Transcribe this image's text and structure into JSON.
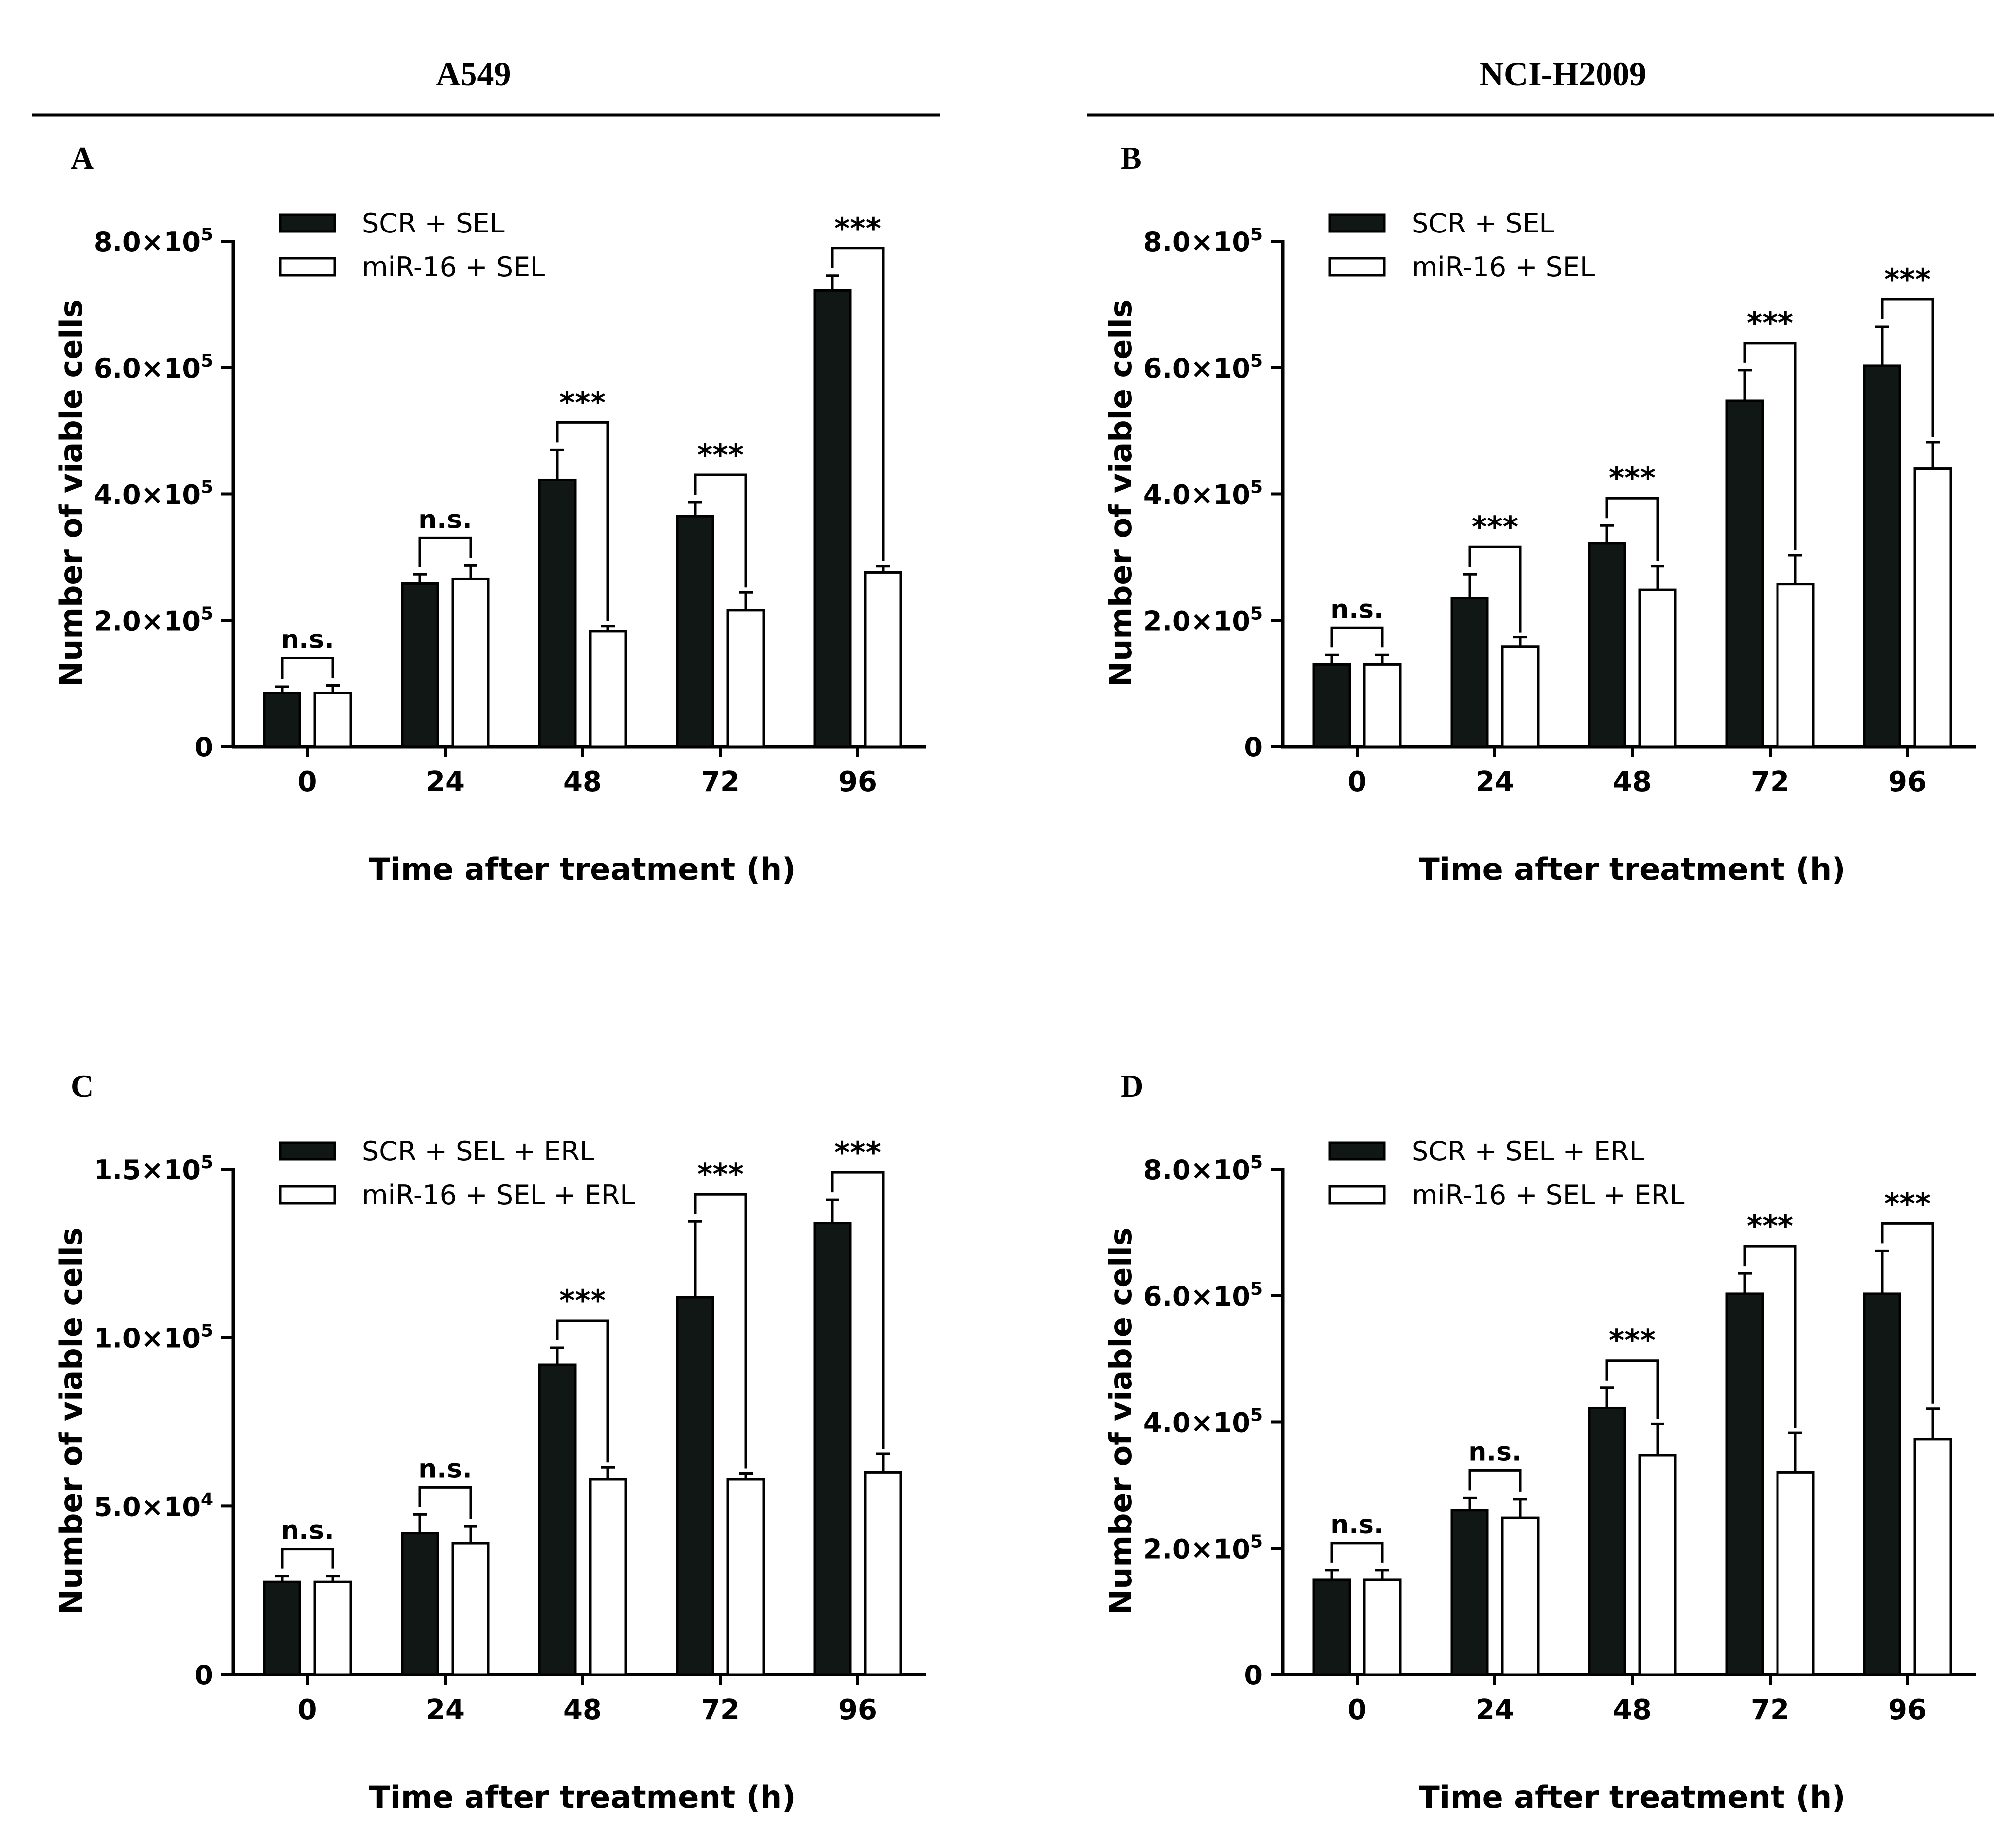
{
  "headers": {
    "left": "A549",
    "right": "NCI-H2009"
  },
  "colors": {
    "dark_bar": "#111714",
    "light_bar": "#ffffff",
    "ink": "#000000"
  },
  "chart_data": [
    {
      "panel": "A",
      "type": "bar",
      "title": "",
      "xlabel": "Time after treatment (h)",
      "ylabel": "Number of viable cells",
      "categories": [
        "0",
        "24",
        "48",
        "72",
        "96"
      ],
      "ylim": [
        0,
        800000
      ],
      "yticks": [
        0,
        200000,
        400000,
        600000,
        800000
      ],
      "ytick_labels": [
        {
          "mantissa": "0",
          "exp": ""
        },
        {
          "mantissa": "2.0×10",
          "exp": "5"
        },
        {
          "mantissa": "4.0×10",
          "exp": "5"
        },
        {
          "mantissa": "6.0×10",
          "exp": "5"
        },
        {
          "mantissa": "8.0×10",
          "exp": "5"
        }
      ],
      "series": [
        {
          "name": "SCR + SEL",
          "values": [
            85000,
            258000,
            422000,
            365000,
            722000
          ],
          "errors": [
            10000,
            15000,
            48000,
            22000,
            24000
          ]
        },
        {
          "name": "miR-16 + SEL",
          "values": [
            85000,
            265000,
            183000,
            216000,
            276000
          ],
          "errors": [
            12000,
            22000,
            8000,
            28000,
            10000
          ]
        }
      ],
      "significance": [
        "n.s.",
        "n.s.",
        "***",
        "***",
        "***"
      ]
    },
    {
      "panel": "B",
      "type": "bar",
      "title": "",
      "xlabel": "Time after treatment (h)",
      "ylabel": "Number of viable cells",
      "categories": [
        "0",
        "24",
        "48",
        "72",
        "96"
      ],
      "ylim": [
        0,
        800000
      ],
      "yticks": [
        0,
        200000,
        400000,
        600000,
        800000
      ],
      "ytick_labels": [
        {
          "mantissa": "0",
          "exp": ""
        },
        {
          "mantissa": "2.0×10",
          "exp": "5"
        },
        {
          "mantissa": "4.0×10",
          "exp": "5"
        },
        {
          "mantissa": "6.0×10",
          "exp": "5"
        },
        {
          "mantissa": "8.0×10",
          "exp": "5"
        }
      ],
      "series": [
        {
          "name": "SCR + SEL",
          "values": [
            130000,
            235000,
            322000,
            548000,
            603000
          ],
          "errors": [
            15000,
            38000,
            28000,
            48000,
            62000
          ]
        },
        {
          "name": "miR-16 + SEL",
          "values": [
            130000,
            158000,
            248000,
            257000,
            440000
          ],
          "errors": [
            15000,
            15000,
            38000,
            46000,
            42000
          ]
        }
      ],
      "significance": [
        "n.s.",
        "***",
        "***",
        "***",
        "***"
      ]
    },
    {
      "panel": "C",
      "type": "bar",
      "title": "",
      "xlabel": "Time after treatment (h)",
      "ylabel": "Number of viable cells",
      "categories": [
        "0",
        "24",
        "48",
        "72",
        "96"
      ],
      "ylim": [
        0,
        150000
      ],
      "yticks": [
        0,
        50000,
        100000,
        150000
      ],
      "ytick_labels": [
        {
          "mantissa": "0",
          "exp": ""
        },
        {
          "mantissa": "5.0×10",
          "exp": "4"
        },
        {
          "mantissa": "1.0×10",
          "exp": "5"
        },
        {
          "mantissa": "1.5×10",
          "exp": "5"
        }
      ],
      "series": [
        {
          "name": "SCR + SEL + ERL",
          "values": [
            27500,
            42000,
            92000,
            112000,
            134000
          ],
          "errors": [
            1700,
            5500,
            5000,
            22500,
            7000
          ]
        },
        {
          "name": "miR-16 + SEL + ERL",
          "values": [
            27500,
            39000,
            58000,
            58000,
            60000
          ],
          "errors": [
            1700,
            5000,
            3500,
            1700,
            5500
          ]
        }
      ],
      "significance": [
        "n.s.",
        "n.s.",
        "***",
        "***",
        "***"
      ]
    },
    {
      "panel": "D",
      "type": "bar",
      "title": "",
      "xlabel": "Time after treatment (h)",
      "ylabel": "Number of viable cells",
      "categories": [
        "0",
        "24",
        "48",
        "72",
        "96"
      ],
      "ylim": [
        0,
        800000
      ],
      "yticks": [
        0,
        200000,
        400000,
        600000,
        800000
      ],
      "ytick_labels": [
        {
          "mantissa": "0",
          "exp": ""
        },
        {
          "mantissa": "2.0×10",
          "exp": "5"
        },
        {
          "mantissa": "4.0×10",
          "exp": "5"
        },
        {
          "mantissa": "6.0×10",
          "exp": "5"
        },
        {
          "mantissa": "8.0×10",
          "exp": "5"
        }
      ],
      "series": [
        {
          "name": "SCR + SEL + ERL",
          "values": [
            150000,
            260000,
            422000,
            603000,
            603000
          ],
          "errors": [
            15000,
            20000,
            32000,
            32000,
            68000
          ]
        },
        {
          "name": "miR-16 + SEL + ERL",
          "values": [
            150000,
            248000,
            347000,
            320000,
            373000
          ],
          "errors": [
            15000,
            30000,
            50000,
            63000,
            48000
          ]
        }
      ],
      "significance": [
        "n.s.",
        "n.s.",
        "***",
        "***",
        "***"
      ]
    }
  ]
}
